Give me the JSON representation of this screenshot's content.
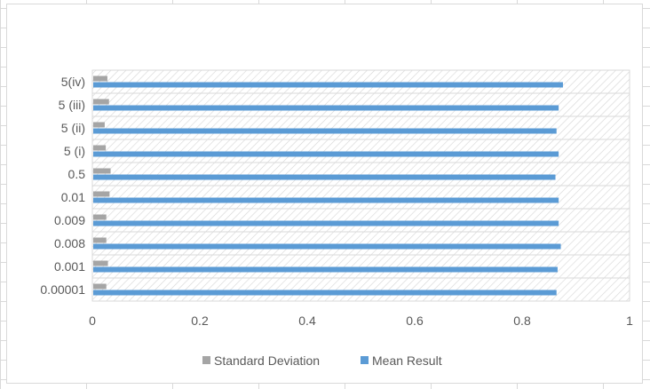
{
  "chart_data": {
    "type": "bar",
    "orientation": "horizontal",
    "categories": [
      "0.00001",
      "0.001",
      "0.008",
      "0.009",
      "0.01",
      "0.5",
      "5 (i)",
      "5 (ii)",
      "5 (iii)",
      "5(iv)"
    ],
    "series": [
      {
        "name": "Standard Deviation",
        "color": "#a5a5a5",
        "values": [
          0.026,
          0.029,
          0.026,
          0.026,
          0.032,
          0.034,
          0.025,
          0.023,
          0.031,
          0.028
        ]
      },
      {
        "name": "Mean Result",
        "color": "#5b9bd5",
        "values": [
          0.864,
          0.866,
          0.872,
          0.868,
          0.868,
          0.862,
          0.868,
          0.864,
          0.868,
          0.876
        ]
      }
    ],
    "xlim": [
      0,
      1
    ],
    "xticks": [
      "0",
      "0.2",
      "0.4",
      "0.6",
      "0.8",
      "1"
    ],
    "grid": true,
    "legend_position": "bottom"
  }
}
